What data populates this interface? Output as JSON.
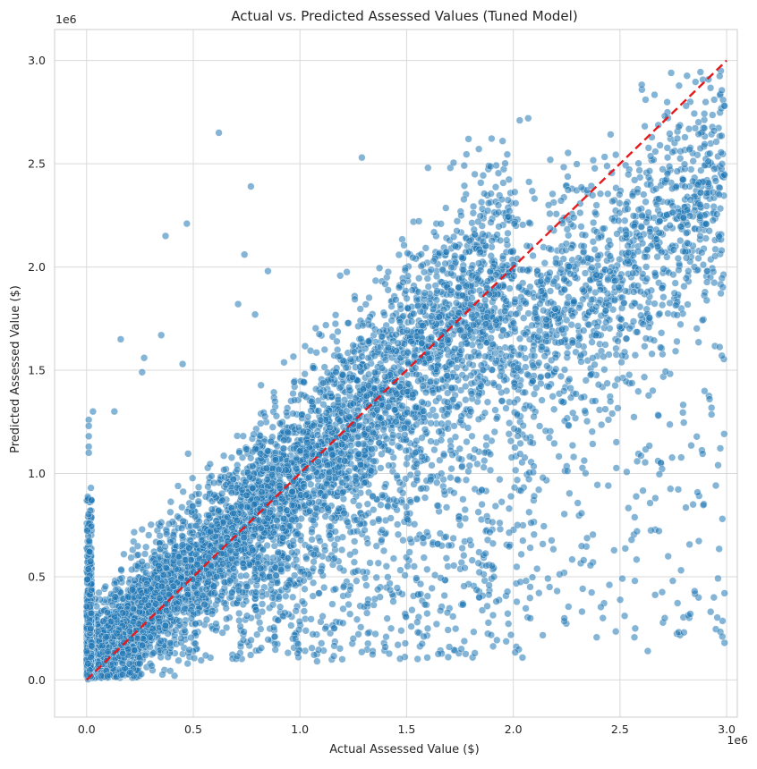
{
  "chart_data": {
    "type": "scatter",
    "title": "Actual vs. Predicted Assessed Values (Tuned Model)",
    "xlabel": "Actual Assessed Value ($)",
    "ylabel": "Predicted Assessed Value ($)",
    "x_offset_label": "1e6",
    "y_offset_label": "1e6",
    "xlim": [
      -0.15,
      3.05
    ],
    "ylim": [
      -0.18,
      3.15
    ],
    "x_scale_factor": 1000000,
    "y_scale_factor": 1000000,
    "xticks": [
      0.0,
      0.5,
      1.0,
      1.5,
      2.0,
      2.5,
      3.0
    ],
    "xtick_labels": [
      "0.0",
      "0.5",
      "1.0",
      "1.5",
      "2.0",
      "2.5",
      "3.0"
    ],
    "yticks": [
      0.0,
      0.5,
      1.0,
      1.5,
      2.0,
      2.5,
      3.0
    ],
    "ytick_labels": [
      "0.0",
      "0.5",
      "1.0",
      "1.5",
      "2.0",
      "2.5",
      "3.0"
    ],
    "grid": true,
    "series": [
      {
        "kind": "points",
        "color": "#1f77b4",
        "alpha": 0.55,
        "edgecolor": "#ffffff",
        "notable_points": [
          [
            0.62,
            2.65
          ],
          [
            0.77,
            2.39
          ],
          [
            0.47,
            2.21
          ],
          [
            0.37,
            2.15
          ],
          [
            0.74,
            2.06
          ],
          [
            0.85,
            1.98
          ],
          [
            0.71,
            1.82
          ],
          [
            0.79,
            1.77
          ],
          [
            0.16,
            1.65
          ],
          [
            0.35,
            1.67
          ],
          [
            1.29,
            2.53
          ],
          [
            1.6,
            2.48
          ],
          [
            1.79,
            2.62
          ],
          [
            1.95,
            2.61
          ],
          [
            2.07,
            2.72
          ],
          [
            2.03,
            2.71
          ],
          [
            2.74,
            2.94
          ],
          [
            2.62,
            2.81
          ],
          [
            2.99,
            2.78
          ],
          [
            2.81,
            2.78
          ],
          [
            0.01,
            1.26
          ],
          [
            0.01,
            1.23
          ],
          [
            0.01,
            1.18
          ],
          [
            0.01,
            1.13
          ],
          [
            0.01,
            1.1
          ],
          [
            0.03,
            1.3
          ],
          [
            0.13,
            1.3
          ],
          [
            0.27,
            1.56
          ],
          [
            0.45,
            1.53
          ],
          [
            0.26,
            1.49
          ],
          [
            2.85,
            0.43
          ],
          [
            2.94,
            0.4
          ],
          [
            2.99,
            0.42
          ],
          [
            2.98,
            0.21
          ],
          [
            2.99,
            0.18
          ],
          [
            2.63,
            0.14
          ],
          [
            2.8,
            0.23
          ],
          [
            2.71,
            0.3
          ],
          [
            2.83,
            0.32
          ],
          [
            2.42,
            0.3
          ],
          [
            1.82,
            0.13
          ],
          [
            1.7,
            0.16
          ],
          [
            1.08,
            0.09
          ],
          [
            1.25,
            0.2
          ],
          [
            1.4,
            0.16
          ],
          [
            2.96,
            1.04
          ],
          [
            2.98,
            0.78
          ],
          [
            2.92,
            1.36
          ],
          [
            2.68,
            1.28
          ],
          [
            2.4,
            1.43
          ],
          [
            2.57,
            0.48
          ],
          [
            2.58,
            0.72
          ],
          [
            2.33,
            0.58
          ],
          [
            2.17,
            0.45
          ],
          [
            2.06,
            0.48
          ],
          [
            0.92,
            0.31
          ],
          [
            1.16,
            0.25
          ],
          [
            1.55,
            0.28
          ],
          [
            1.84,
            0.4
          ],
          [
            1.92,
            0.38
          ]
        ]
      },
      {
        "kind": "line",
        "name": "",
        "color": "#e41a1c",
        "style": "dashed",
        "x": [
          0.0,
          3.0
        ],
        "y": [
          0.0,
          3.0
        ]
      }
    ]
  }
}
